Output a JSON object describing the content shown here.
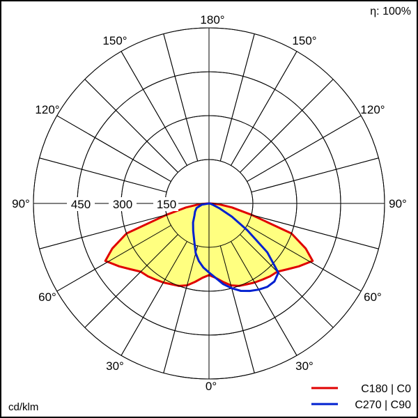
{
  "chart_data": {
    "type": "polar",
    "unit_label": "cd/klm",
    "efficiency_label": "η: 100%",
    "radial_ticks": [
      150,
      300,
      450,
      600
    ],
    "radial_tick_labels": [
      "150",
      "300",
      "450"
    ],
    "radial_max": 600,
    "angle_labels": {
      "top": "180°",
      "upper_left": "150°",
      "upper_right": "150°",
      "mid_upper_left": "120°",
      "mid_upper_right": "120°",
      "left": "90°",
      "right": "90°",
      "mid_lower_left": "60°",
      "mid_lower_right": "60°",
      "lower_left": "30°",
      "lower_right": "30°",
      "bottom": "0°"
    },
    "angle_grid_step_deg": 15,
    "fill_color": "#ffff80",
    "series": [
      {
        "name": "C180 | C0",
        "color": "#e00000",
        "filled": true,
        "angles": [
          -90,
          -85,
          -80,
          -75,
          -70,
          -65,
          -61,
          -55,
          -50,
          -45,
          -40,
          -35,
          -30,
          -25,
          -20,
          -15,
          -10,
          -5,
          0,
          5,
          10,
          15,
          20,
          25,
          30,
          35,
          40,
          45,
          50,
          55,
          61,
          65,
          70,
          75,
          80,
          85,
          90
        ],
        "values": [
          5,
          35,
          80,
          150,
          300,
          365,
          405,
          375,
          350,
          330,
          325,
          318,
          312,
          305,
          300,
          290,
          272,
          255,
          245,
          255,
          272,
          290,
          300,
          305,
          312,
          318,
          325,
          330,
          350,
          375,
          405,
          365,
          300,
          150,
          80,
          35,
          5
        ]
      },
      {
        "name": "C270 | C90",
        "color": "#0020d0",
        "filled": false,
        "angles": [
          -90,
          -80,
          -70,
          -60,
          -50,
          -40,
          -30,
          -20,
          -15,
          -10,
          -5,
          0,
          5,
          10,
          15,
          20,
          25,
          30,
          35,
          40,
          45,
          50,
          55,
          60,
          65,
          70,
          80,
          90
        ],
        "values": [
          0,
          25,
          45,
          55,
          65,
          85,
          108,
          145,
          176,
          200,
          220,
          236,
          255,
          280,
          300,
          318,
          330,
          340,
          348,
          348,
          335,
          260,
          160,
          90,
          40,
          15,
          5,
          0
        ]
      }
    ]
  }
}
